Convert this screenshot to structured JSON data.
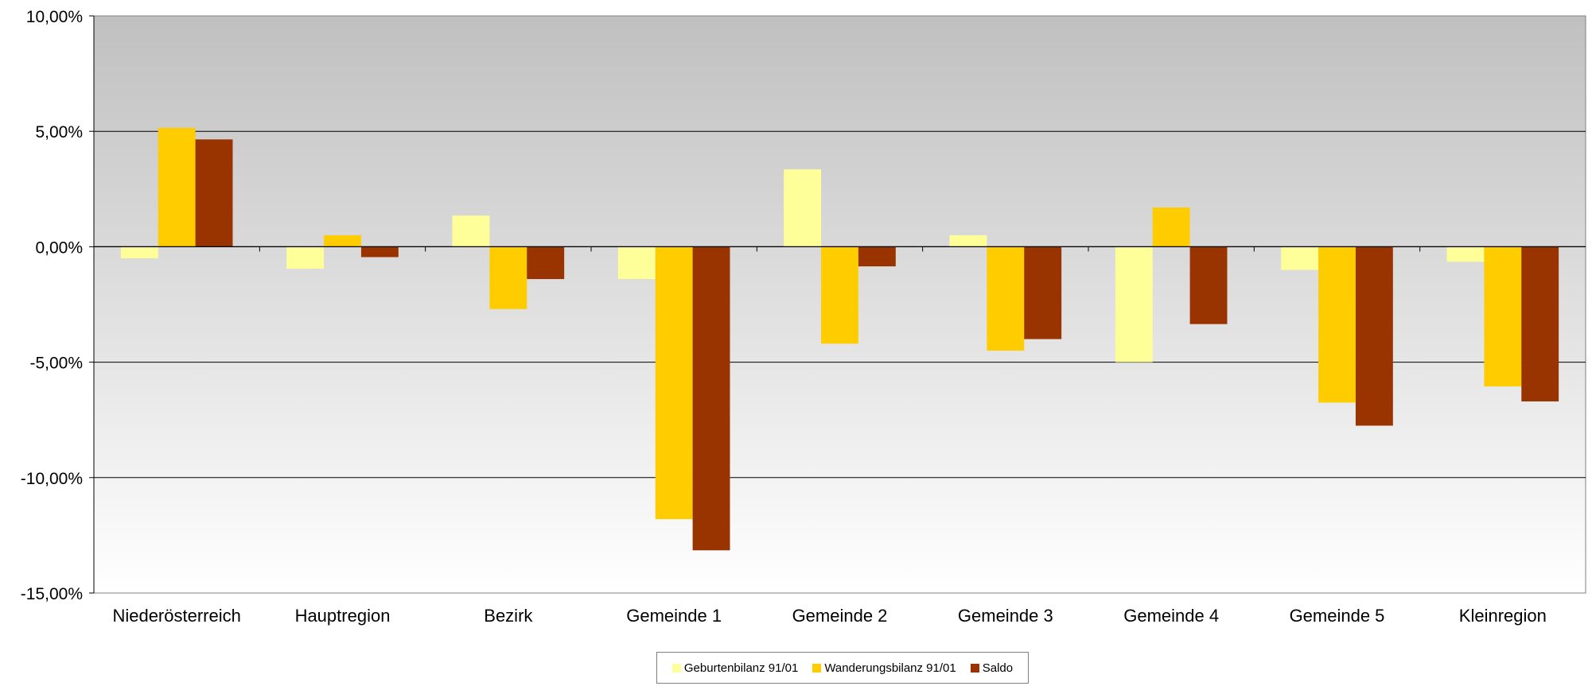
{
  "chart_data": {
    "type": "bar",
    "title": "",
    "xlabel": "",
    "ylabel": "",
    "ylim": [
      -15,
      10
    ],
    "y_ticks": [
      "10,00%",
      "5,00%",
      "0,00%",
      "-5,00%",
      "-10,00%",
      "-15,00%"
    ],
    "y_tick_values": [
      10,
      5,
      0,
      -5,
      -10,
      -15
    ],
    "categories": [
      "Niederösterreich",
      "Hauptregion",
      "Bezirk",
      "Gemeinde 1",
      "Gemeinde 2",
      "Gemeinde 3",
      "Gemeinde 4",
      "Gemeinde 5",
      "Kleinregion"
    ],
    "series": [
      {
        "name": "Geburtenbilanz 91/01",
        "color": "#ffff99",
        "values": [
          -0.5,
          -0.95,
          1.35,
          -1.4,
          3.35,
          0.5,
          -5.0,
          -1.0,
          -0.65
        ]
      },
      {
        "name": "Wanderungsbilanz 91/01",
        "color": "#ffcc00",
        "values": [
          5.15,
          0.5,
          -2.7,
          -11.8,
          -4.2,
          -4.5,
          1.7,
          -6.75,
          -6.05
        ]
      },
      {
        "name": "Saldo",
        "color": "#993300",
        "values": [
          4.65,
          -0.45,
          -1.4,
          -13.15,
          -0.85,
          -4.0,
          -3.35,
          -7.75,
          -6.7
        ]
      }
    ],
    "grid": true,
    "legend_position": "bottom",
    "plot_background": "gradient grey to white"
  }
}
